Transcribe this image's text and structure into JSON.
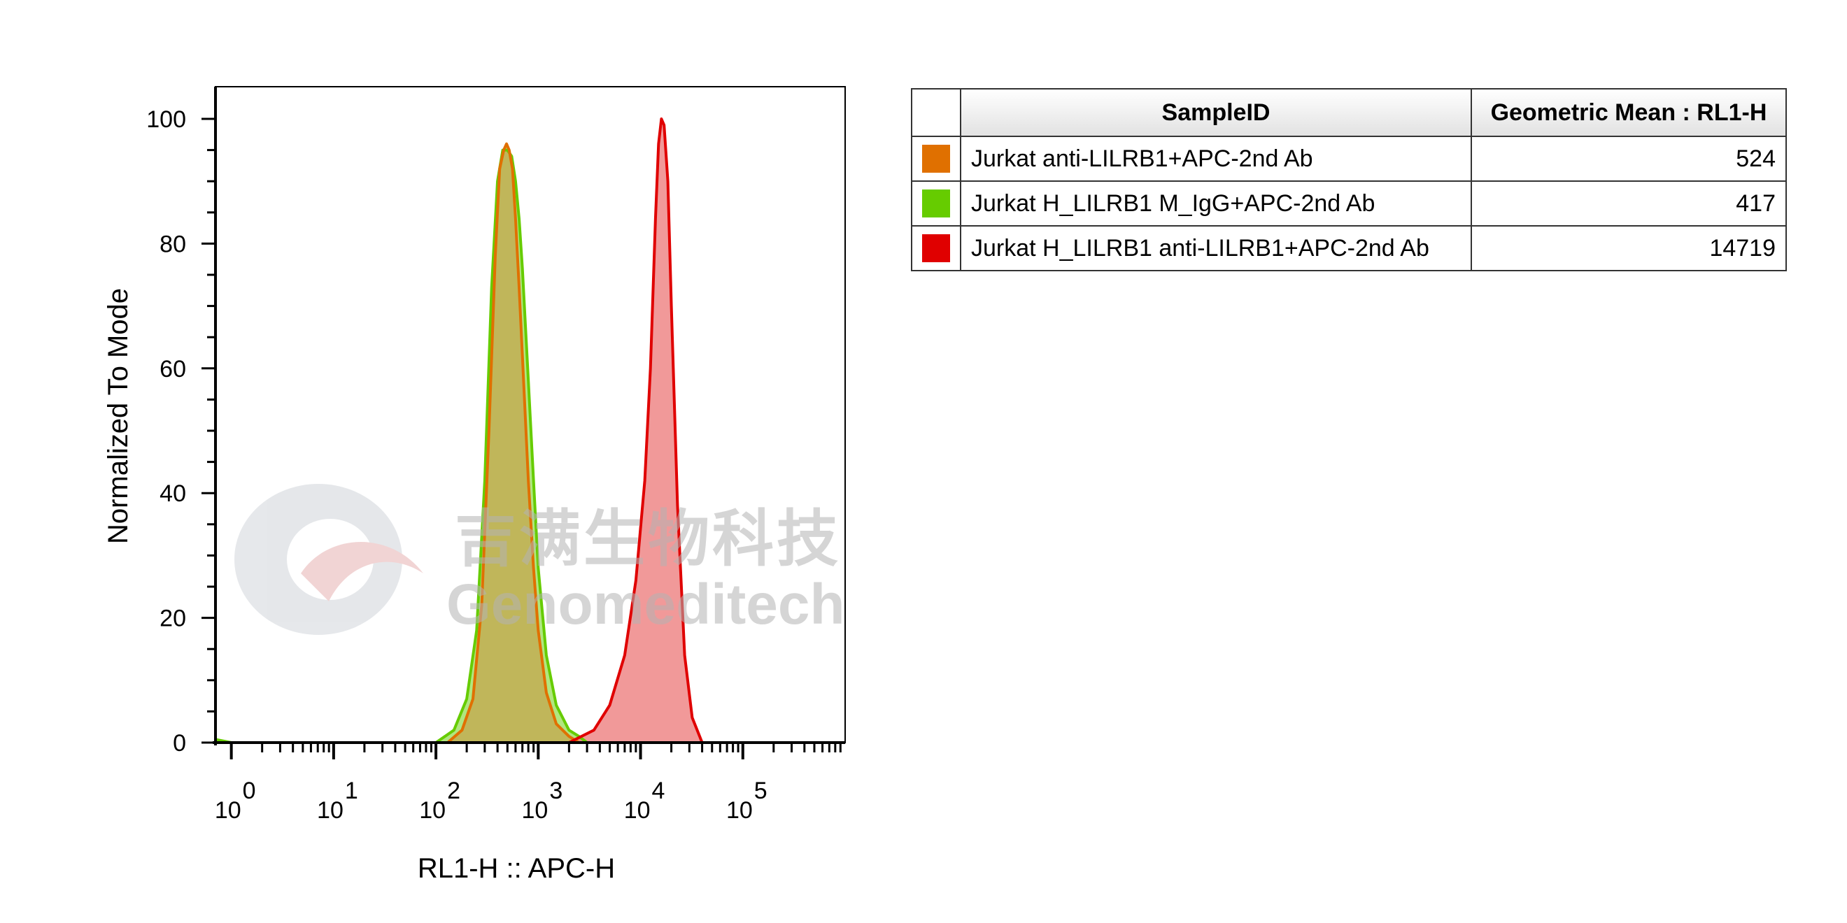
{
  "chart_data": {
    "type": "area",
    "xlabel": "RL1-H :: APC-H",
    "ylabel": "Normalized To Mode",
    "x_scale": "log",
    "xlim": [
      0.7,
      1000000
    ],
    "ylim": [
      0,
      100
    ],
    "x_tick_labels": [
      {
        "base": "10",
        "exp": "0",
        "value": 1
      },
      {
        "base": "10",
        "exp": "1",
        "value": 10
      },
      {
        "base": "10",
        "exp": "2",
        "value": 100
      },
      {
        "base": "10",
        "exp": "3",
        "value": 1000
      },
      {
        "base": "10",
        "exp": "4",
        "value": 10000
      },
      {
        "base": "10",
        "exp": "5",
        "value": 100000
      }
    ],
    "y_ticks": [
      0,
      20,
      40,
      60,
      80,
      100
    ],
    "series": [
      {
        "name": "Jurkat H_LILRB1 M_IgG+APC-2nd Ab",
        "stroke": "#66cc00",
        "fill": "#8fdc4a",
        "x": [
          0.7,
          1,
          100,
          150,
          200,
          250,
          300,
          350,
          400,
          450,
          500,
          550,
          600,
          650,
          700,
          800,
          900,
          1000,
          1200,
          1500,
          2000,
          2500,
          3000,
          1000000
        ],
        "y": [
          0.5,
          0,
          0,
          2,
          7,
          18,
          42,
          73,
          90,
          95,
          95,
          94,
          90,
          84,
          76,
          58,
          42,
          28,
          14,
          6,
          2,
          1,
          0,
          0
        ]
      },
      {
        "name": "Jurkat anti-LILRB1+APC-2nd Ab",
        "stroke": "#e07000",
        "fill": "#c8a14a",
        "x": [
          0.7,
          1,
          130,
          180,
          230,
          280,
          330,
          380,
          420,
          460,
          490,
          520,
          560,
          600,
          650,
          700,
          800,
          900,
          1000,
          1200,
          1500,
          2000,
          2500,
          3000,
          1000000
        ],
        "y": [
          0,
          0,
          0,
          2,
          7,
          22,
          50,
          78,
          92,
          95,
          96,
          95,
          92,
          84,
          73,
          62,
          42,
          28,
          18,
          8,
          3,
          1,
          0,
          0,
          0
        ]
      },
      {
        "name": "Jurkat H_LILRB1 anti-LILRB1+APC-2nd Ab",
        "stroke": "#e00000",
        "fill": "#ee8080",
        "x": [
          0.7,
          1000,
          2000,
          3500,
          5000,
          7000,
          9000,
          11000,
          12500,
          14000,
          15000,
          16000,
          17000,
          18500,
          20000,
          23000,
          27000,
          32000,
          40000,
          1000000
        ],
        "y": [
          0,
          0,
          0,
          2,
          6,
          14,
          26,
          42,
          60,
          84,
          96,
          100,
          99,
          90,
          70,
          38,
          14,
          4,
          0,
          0
        ]
      }
    ],
    "table": {
      "headers": [
        "SampleID",
        "Geometric Mean : RL1-H"
      ],
      "rows": [
        {
          "color": "#e07000",
          "sample": "Jurkat anti-LILRB1+APC-2nd Ab",
          "value": "524"
        },
        {
          "color": "#66cc00",
          "sample": "Jurkat H_LILRB1 M_IgG+APC-2nd Ab",
          "value": "417"
        },
        {
          "color": "#e00000",
          "sample": "Jurkat H_LILRB1 anti-LILRB1+APC-2nd Ab",
          "value": "14719"
        }
      ]
    }
  },
  "watermark": {
    "chinese": "吉满生物科技",
    "english": "Genomeditech"
  }
}
